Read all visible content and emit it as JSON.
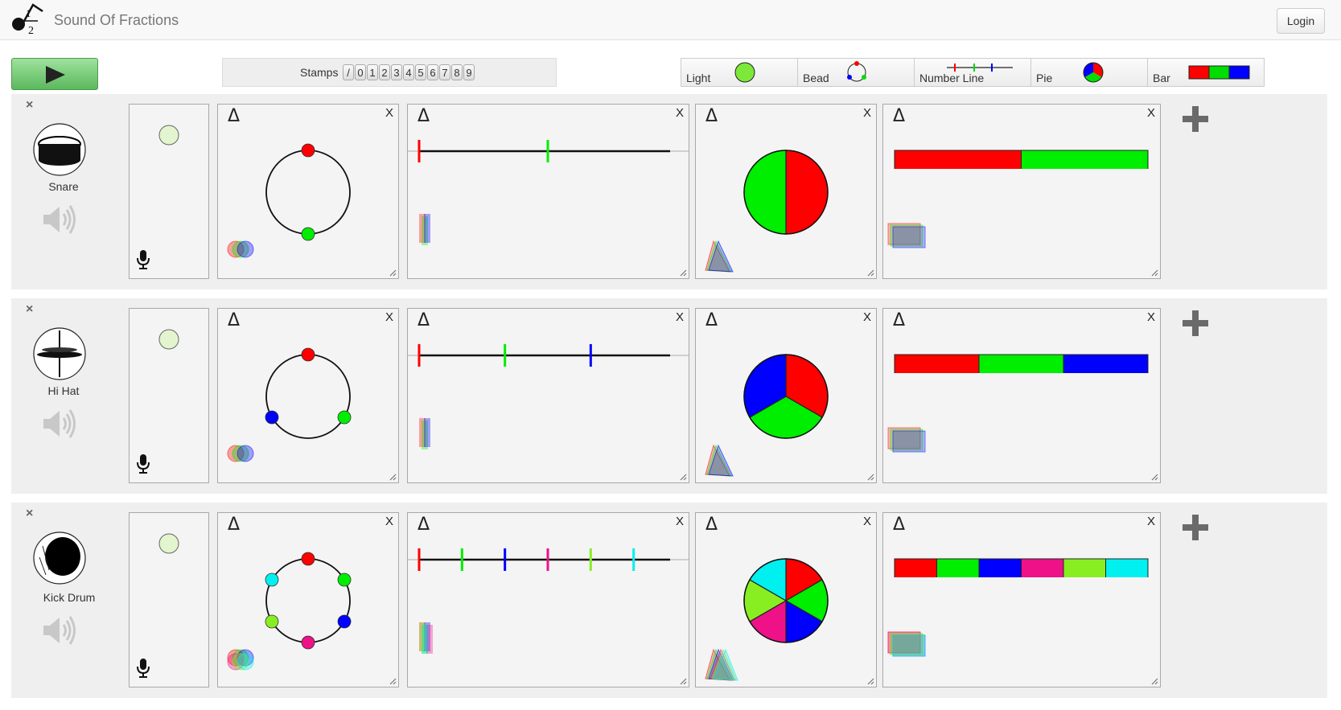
{
  "header": {
    "title": "Sound Of Fractions",
    "login_label": "Login",
    "logo": {
      "numerator": "1",
      "denominator": "2"
    }
  },
  "toolbar": {
    "play_icon": "play-icon",
    "stamps_label": "Stamps",
    "stamp_keys": [
      "/",
      "0",
      "1",
      "2",
      "3",
      "4",
      "5",
      "6",
      "7",
      "8",
      "9"
    ]
  },
  "palette": [
    {
      "label": "Light",
      "icon": "light-icon"
    },
    {
      "label": "Bead",
      "icon": "bead-icon"
    },
    {
      "label": "Number Line",
      "icon": "number-line-icon"
    },
    {
      "label": "Pie",
      "icon": "pie-icon"
    },
    {
      "label": "Bar",
      "icon": "bar-icon"
    }
  ],
  "colors": {
    "red": "#ff0000",
    "green": "#00ee00",
    "blue": "#0000ff",
    "magenta": "#ee1188",
    "lime": "#88ee22",
    "cyan": "#00f0f0"
  },
  "tracks": [
    {
      "name": "Snare",
      "instrument_icon": "snare-drum-icon",
      "divisions": 2,
      "palette_labels": {
        "delta": "Δ",
        "close": "X"
      }
    },
    {
      "name": "Hi Hat",
      "instrument_icon": "hi-hat-icon",
      "divisions": 3,
      "palette_labels": {
        "delta": "Δ",
        "close": "X"
      }
    },
    {
      "name": "Kick Drum",
      "instrument_icon": "kick-drum-icon",
      "divisions": 6,
      "palette_labels": {
        "delta": "Δ",
        "close": "X"
      }
    }
  ]
}
